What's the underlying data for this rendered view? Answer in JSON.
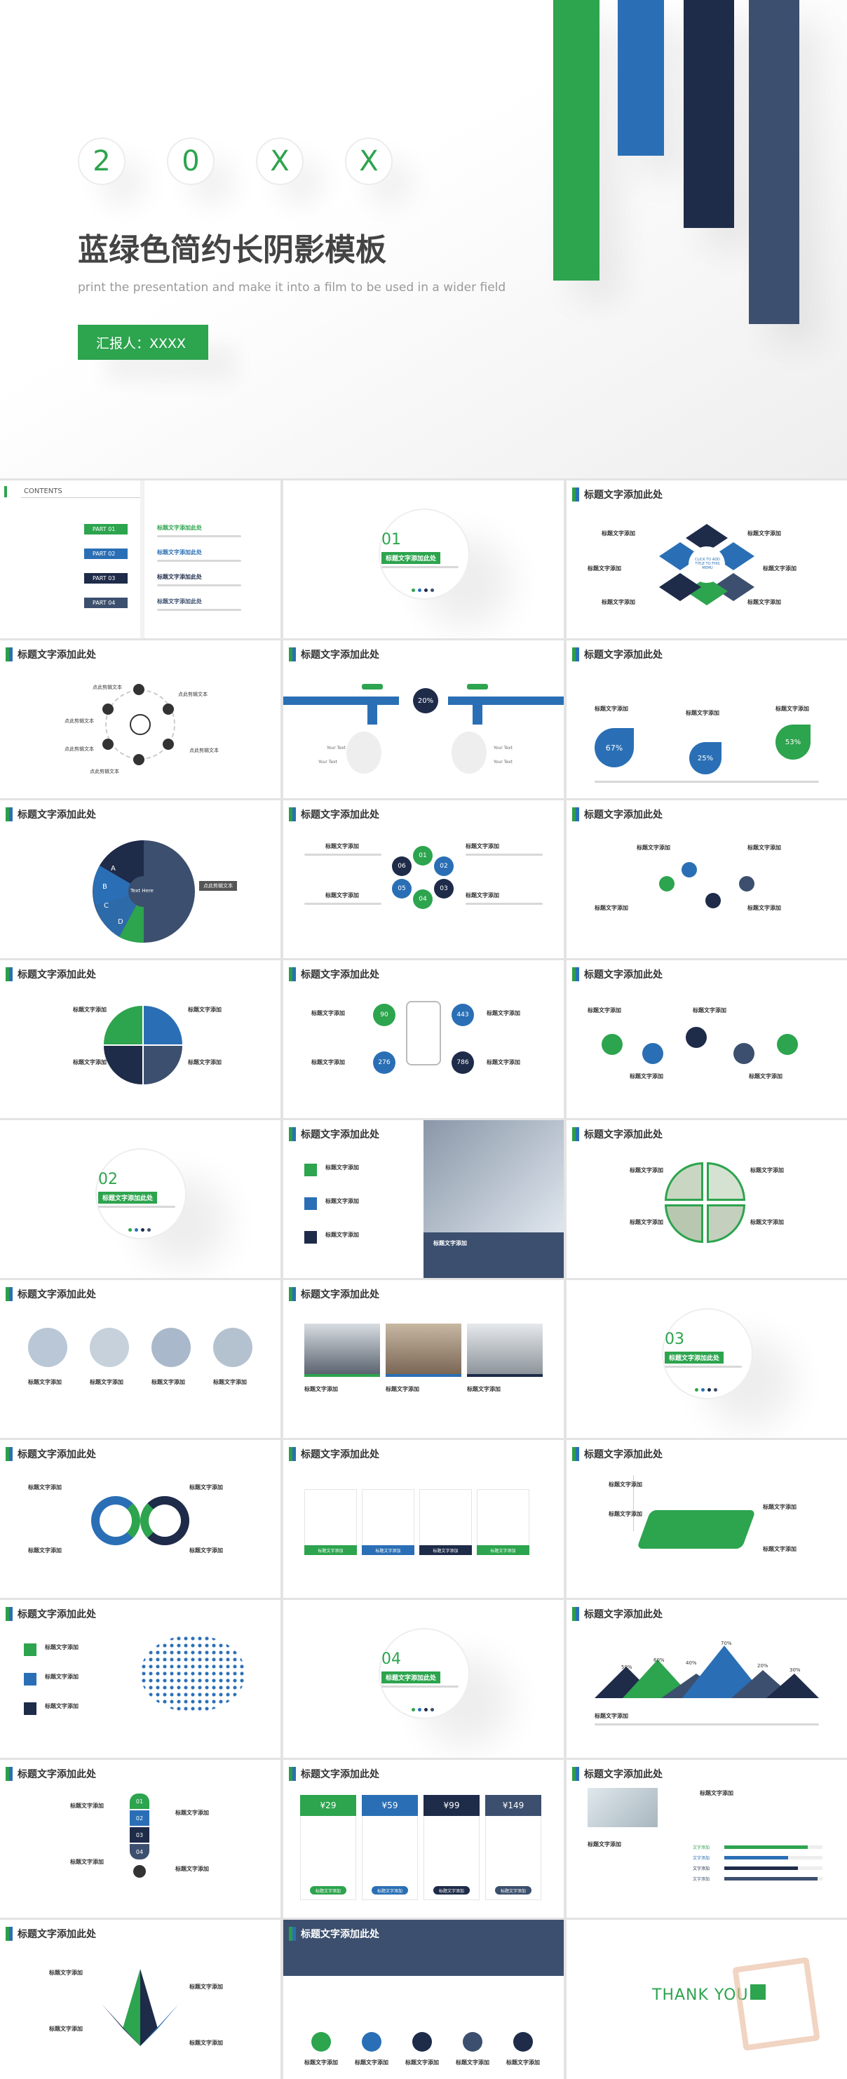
{
  "colors": {
    "green": "#2da44e",
    "blue": "#2a6fb5",
    "navy": "#1e2b49",
    "slate": "#3c4f6e"
  },
  "cover": {
    "digits": [
      "2",
      "0",
      "X",
      "X"
    ],
    "title": "蓝绿色简约长阴影模板",
    "subtitle": "print the presentation and make it into a film to be used in a wider field",
    "reporter": "汇报人：XXXX"
  },
  "header": "标题文字添加此处",
  "item": "标题文字添加",
  "contents": {
    "title": "CONTENTS",
    "parts": [
      "PART 01",
      "PART 02",
      "PART 03",
      "PART 04"
    ],
    "items": [
      "标题文字添加此处",
      "标题文字添加此处",
      "标题文字添加此处",
      "标题文字添加此处"
    ]
  },
  "sections": [
    {
      "num": "01",
      "label": "标题文字添加此处"
    },
    {
      "num": "02",
      "label": "标题文字添加此处"
    },
    {
      "num": "03",
      "label": "标题文字添加此处"
    },
    {
      "num": "04",
      "label": "标题文字添加此处"
    }
  ],
  "hex_center": "CLICK TO ADD TITLE TO THIS MEMU",
  "cycle_labels": [
    "点此剪辑文本",
    "点此剪辑文本",
    "点此剪辑文本",
    "点此剪辑文本",
    "点此剪辑文本",
    "点此剪辑文本"
  ],
  "pipe": {
    "center": "20%",
    "labels": [
      "Your Text",
      "Your Text",
      "Your Text",
      "Your Text"
    ]
  },
  "drops": [
    "67%",
    "25%",
    "53%"
  ],
  "pie": {
    "segments": [
      "A",
      "B",
      "C",
      "D"
    ],
    "center": "Text Here",
    "label": "点此剪辑文本"
  },
  "numbers_small": [
    "01",
    "02",
    "03",
    "04",
    "05",
    "06"
  ],
  "phone_stats": [
    "90",
    "443",
    "276",
    "786"
  ],
  "steps": [
    "01",
    "02",
    "03",
    "04"
  ],
  "prices": [
    "¥29",
    "¥59",
    "¥99",
    "¥149"
  ],
  "mountain_pcts": [
    "50%",
    "60%",
    "40%",
    "70%",
    "20%",
    "30%"
  ],
  "bars": {
    "labels": [
      "文字添加",
      "文字添加",
      "文字添加",
      "文字添加"
    ],
    "values": [
      0.85,
      0.65,
      0.75,
      0.95
    ]
  },
  "thankyou": "THANK YOU"
}
